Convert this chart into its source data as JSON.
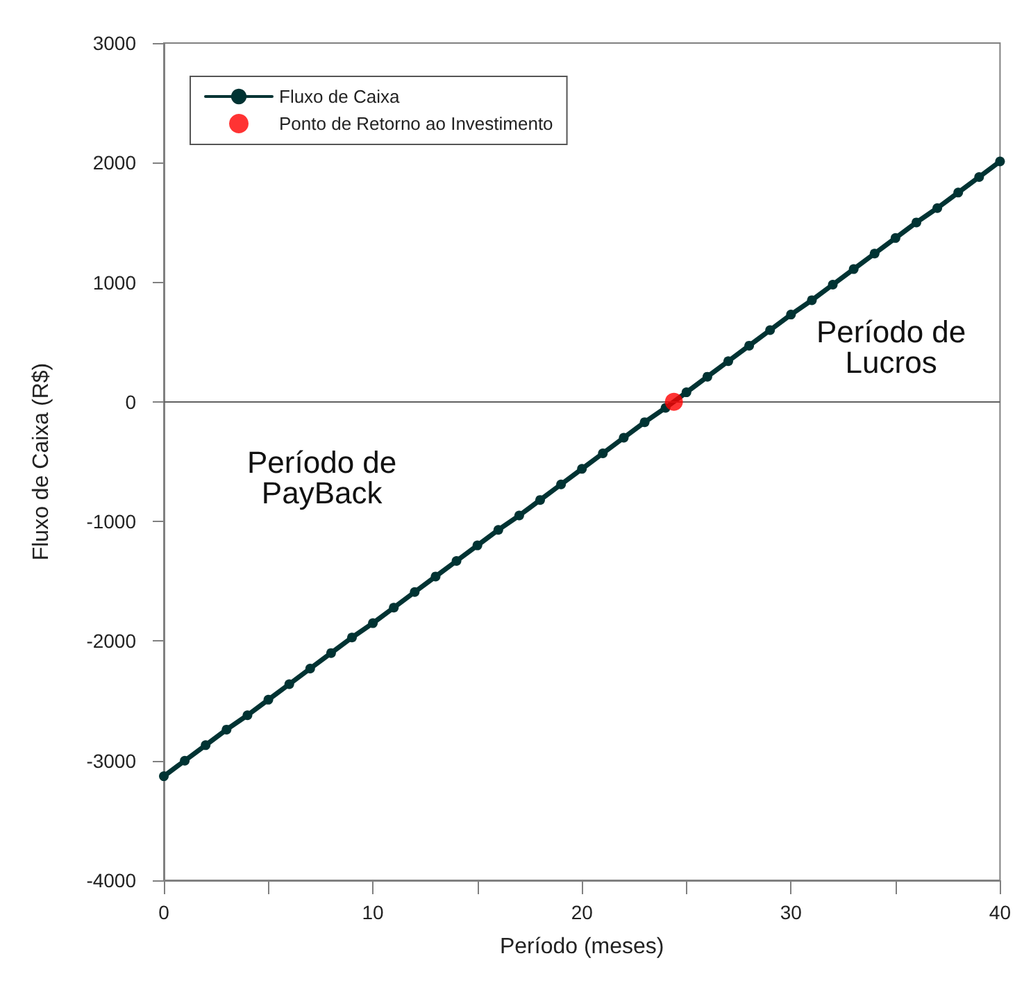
{
  "chart_data": {
    "type": "line",
    "xlabel": "Período (meses)",
    "ylabel": "Fluxo de Caixa (R$)",
    "xlim": [
      0,
      40
    ],
    "xticks": [
      0,
      {
        "value": 5,
        "label": null
      },
      10,
      {
        "value": 15,
        "label": null
      },
      20,
      {
        "value": 25,
        "label": null
      },
      30,
      {
        "value": 35,
        "label": null
      },
      40
    ],
    "ylim": [
      -4000,
      3000
    ],
    "yticks": [
      -4000,
      -3000,
      -2000,
      -1000,
      0,
      1000,
      2000,
      3000
    ],
    "x": [
      0,
      1,
      2,
      3,
      4,
      5,
      6,
      7,
      8,
      9,
      10,
      11,
      12,
      13,
      14,
      15,
      16,
      17,
      18,
      19,
      20,
      21,
      22,
      23,
      24,
      25,
      26,
      27,
      28,
      29,
      30,
      31,
      32,
      33,
      34,
      35,
      36,
      37,
      38,
      39,
      40
    ],
    "series": [
      {
        "name": "Fluxo de Caixa",
        "color": "#003333",
        "marker": "circle",
        "values": [
          -3130,
          -3000,
          -2870,
          -2740,
          -2620,
          -2490,
          -2360,
          -2230,
          -2100,
          -1970,
          -1850,
          -1720,
          -1590,
          -1460,
          -1330,
          -1200,
          -1070,
          -950,
          -820,
          -690,
          -560,
          -430,
          -300,
          -170,
          -50,
          80,
          210,
          340,
          470,
          600,
          730,
          850,
          980,
          1110,
          1240,
          1370,
          1500,
          1620,
          1750,
          1880,
          2010
        ]
      },
      {
        "name": "Ponto de Retorno ao Investimento",
        "type": "scatter",
        "color": "#ff0000",
        "marker": "circle",
        "x": [
          24.4
        ],
        "values": [
          0
        ]
      }
    ],
    "ref_lines": [
      {
        "axis": "y",
        "value": 0,
        "color": "#606060",
        "line_style": "solid"
      }
    ],
    "annotations": [
      "Período de\nPayBack",
      "Período de\nLucros"
    ],
    "legend": "top left",
    "grid": false,
    "line_style": "solid"
  }
}
